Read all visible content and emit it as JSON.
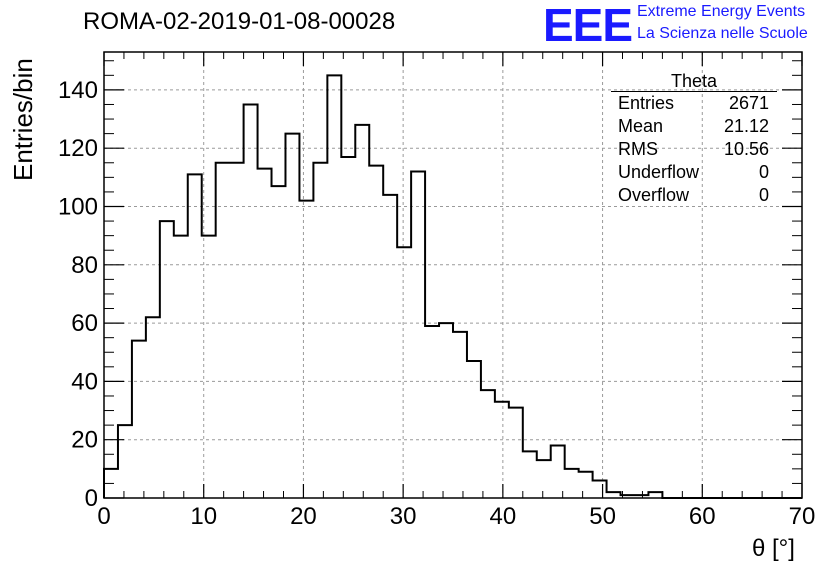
{
  "header": {
    "title": "ROMA-02-2019-01-08-00028",
    "logo_text": "EEE",
    "org_line1": "Extreme Energy Events",
    "org_line2": "La Scienza nelle Scuole"
  },
  "stats_box": {
    "name": "Theta",
    "rows": [
      {
        "label": "Entries",
        "value": "2671"
      },
      {
        "label": "Mean",
        "value": "21.12"
      },
      {
        "label": "RMS",
        "value": "10.56"
      },
      {
        "label": "Underflow",
        "value": "0"
      },
      {
        "label": "Overflow",
        "value": "0"
      }
    ]
  },
  "colors": {
    "logo": "#1a1aff",
    "histogram_line": "#000000",
    "grid": "#9a9a9a"
  },
  "chart_data": {
    "type": "bar",
    "style": "step-histogram",
    "xlabel": "θ [°]",
    "ylabel": "Entries/bin",
    "xlim": [
      0,
      70
    ],
    "ylim": [
      0,
      153
    ],
    "bin_width": 1.4,
    "bin_edges_start": 0,
    "x_ticks": [
      0,
      10,
      20,
      30,
      40,
      50,
      60,
      70
    ],
    "y_ticks": [
      0,
      20,
      40,
      60,
      80,
      100,
      120,
      140
    ],
    "grid": true,
    "values": [
      10,
      25,
      54,
      62,
      95,
      90,
      111,
      90,
      115,
      115,
      135,
      113,
      107,
      125,
      102,
      115,
      145,
      117,
      128,
      114,
      104,
      86,
      112,
      59,
      60,
      57,
      47,
      37,
      33,
      31,
      16,
      13,
      18,
      10,
      9,
      6,
      2,
      1,
      1,
      2,
      0,
      0,
      0,
      0,
      0,
      0,
      0,
      0,
      0,
      0
    ]
  }
}
